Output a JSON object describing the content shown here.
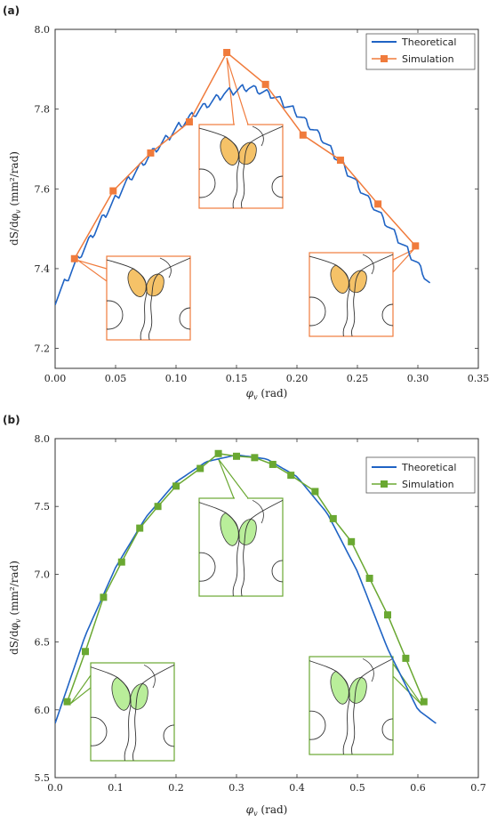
{
  "chart_data": [
    {
      "type": "line",
      "panel_label": "(a)",
      "xlabel": "φ",
      "xlabel_sub": "v",
      "xlabel_unit": " (rad)",
      "ylabel": "dS/dφ",
      "ylabel_sub": "v",
      "ylabel_unit": " (mm²/rad)",
      "xlim": [
        0.0,
        0.35
      ],
      "ylim": [
        7.15,
        8.0
      ],
      "xticks": [
        0.0,
        0.05,
        0.1,
        0.15,
        0.2,
        0.25,
        0.3,
        0.35
      ],
      "xtick_labels": [
        "0.00",
        "0.05",
        "0.10",
        "0.15",
        "0.20",
        "0.25",
        "0.30",
        "0.35"
      ],
      "yticks": [
        7.2,
        7.4,
        7.6,
        7.8,
        8.0
      ],
      "ytick_labels": [
        "7.2",
        "7.4",
        "7.6",
        "7.8",
        "8.0"
      ],
      "legend_position": "top-right",
      "colors": {
        "theoretical": "#1f63c4",
        "simulation": "#f07b3c",
        "inset_fill": "#f5c268"
      },
      "series": [
        {
          "name": "Theoretical",
          "style": "wavy",
          "x": [
            0.0,
            0.02,
            0.04,
            0.06,
            0.08,
            0.1,
            0.12,
            0.14,
            0.16,
            0.18,
            0.2,
            0.22,
            0.24,
            0.26,
            0.28,
            0.3,
            0.31
          ],
          "y": [
            7.32,
            7.43,
            7.53,
            7.62,
            7.69,
            7.75,
            7.8,
            7.84,
            7.855,
            7.835,
            7.79,
            7.73,
            7.65,
            7.57,
            7.49,
            7.41,
            7.36
          ]
        },
        {
          "name": "Simulation",
          "marker": "square",
          "x": [
            0.016,
            0.048,
            0.079,
            0.111,
            0.142,
            0.174,
            0.205,
            0.236,
            0.267,
            0.298
          ],
          "y": [
            7.425,
            7.595,
            7.69,
            7.768,
            7.942,
            7.862,
            7.735,
            7.672,
            7.562,
            7.457
          ]
        }
      ],
      "insets": [
        {
          "anchor_index": 0,
          "pointer_side": "left"
        },
        {
          "anchor_index": 4,
          "pointer_side": "top"
        },
        {
          "anchor_index": 9,
          "pointer_side": "right"
        }
      ]
    },
    {
      "type": "line",
      "panel_label": "(b)",
      "xlabel": "φ",
      "xlabel_sub": "v",
      "xlabel_unit": " (rad)",
      "ylabel": "dS/dφ",
      "ylabel_sub": "v",
      "ylabel_unit": " (mm²/rad)",
      "xlim": [
        0.0,
        0.7
      ],
      "ylim": [
        5.5,
        8.0
      ],
      "xticks": [
        0.0,
        0.1,
        0.2,
        0.3,
        0.4,
        0.5,
        0.6,
        0.7
      ],
      "xtick_labels": [
        "0.0",
        "0.1",
        "0.2",
        "0.3",
        "0.4",
        "0.5",
        "0.6",
        "0.7"
      ],
      "yticks": [
        5.5,
        6.0,
        6.5,
        7.0,
        7.5,
        8.0
      ],
      "ytick_labels": [
        "5.5",
        "6.0",
        "6.5",
        "7.0",
        "7.5",
        "8.0"
      ],
      "legend_position": "top-right",
      "colors": {
        "theoretical": "#1f63c4",
        "simulation": "#6aa832",
        "inset_fill": "#b9ee9a"
      },
      "series": [
        {
          "name": "Theoretical",
          "style": "smooth",
          "x": [
            0.0,
            0.05,
            0.1,
            0.15,
            0.2,
            0.25,
            0.3,
            0.35,
            0.4,
            0.45,
            0.5,
            0.55,
            0.6,
            0.63
          ],
          "y": [
            5.9,
            6.55,
            7.05,
            7.42,
            7.68,
            7.83,
            7.88,
            7.85,
            7.72,
            7.45,
            7.02,
            6.45,
            6.0,
            5.9
          ]
        },
        {
          "name": "Simulation",
          "marker": "square",
          "x": [
            0.02,
            0.05,
            0.08,
            0.11,
            0.14,
            0.17,
            0.2,
            0.24,
            0.27,
            0.3,
            0.33,
            0.36,
            0.39,
            0.43,
            0.46,
            0.49,
            0.52,
            0.55,
            0.58,
            0.61
          ],
          "y": [
            6.06,
            6.43,
            6.83,
            7.09,
            7.34,
            7.5,
            7.65,
            7.78,
            7.89,
            7.87,
            7.86,
            7.81,
            7.73,
            7.61,
            7.41,
            7.24,
            6.97,
            6.7,
            6.38,
            6.06
          ]
        }
      ],
      "insets": [
        {
          "anchor_index": 0,
          "pointer_side": "left"
        },
        {
          "anchor_index": 8,
          "pointer_side": "top"
        },
        {
          "anchor_index": 19,
          "pointer_side": "right"
        }
      ]
    }
  ]
}
